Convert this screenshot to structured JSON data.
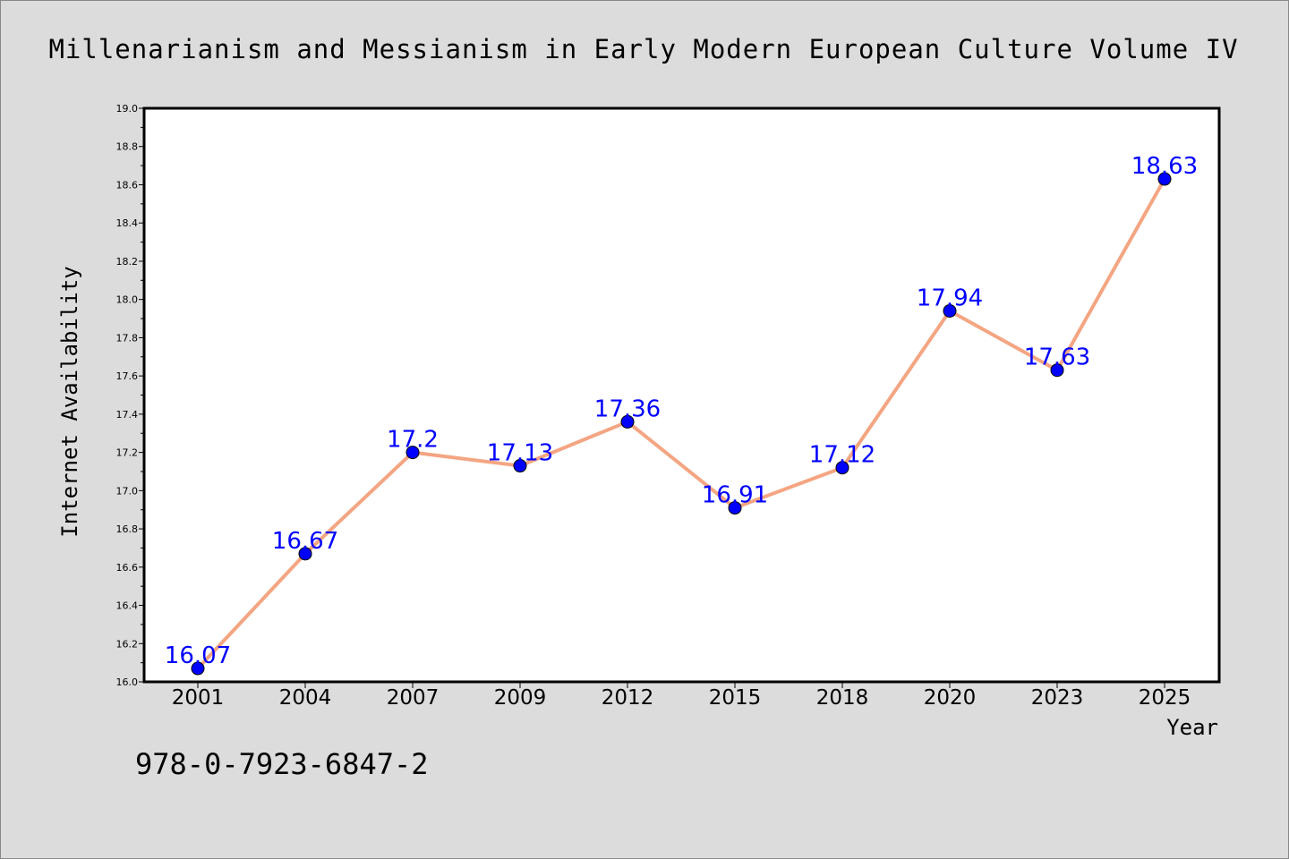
{
  "chart_data": {
    "type": "line",
    "title": "Millenarianism and Messianism in Early Modern European Culture Volume IV",
    "xlabel": "Year",
    "ylabel": "Internet Availability",
    "categories": [
      "2001",
      "2004",
      "2007",
      "2009",
      "2012",
      "2015",
      "2018",
      "2020",
      "2023",
      "2025"
    ],
    "series": [
      {
        "values": [
          16.07,
          16.67,
          17.2,
          17.13,
          17.36,
          16.91,
          17.12,
          17.94,
          17.63,
          18.63
        ],
        "data_labels": [
          "16.07",
          "16.67",
          "17.2",
          "17.13",
          "17.36",
          "16.91",
          "17.12",
          "17.94",
          "17.63",
          "18.63"
        ]
      }
    ],
    "ylim": [
      16.0,
      19.0
    ],
    "yticks": [
      "16.0",
      "16.2",
      "16.4",
      "16.6",
      "16.8",
      "17.0",
      "17.2",
      "17.4",
      "17.6",
      "17.8",
      "18.0",
      "18.2",
      "18.4",
      "18.6",
      "18.8",
      "19.0"
    ],
    "grid": false,
    "legend": "none",
    "colors": {
      "line": "#f4a582",
      "marker": "#0000ff",
      "data_label": "#0000ff",
      "background": "#dcdcdc",
      "plot_background": "#ffffff"
    }
  },
  "footer": {
    "isbn": "978-0-7923-6847-2"
  }
}
